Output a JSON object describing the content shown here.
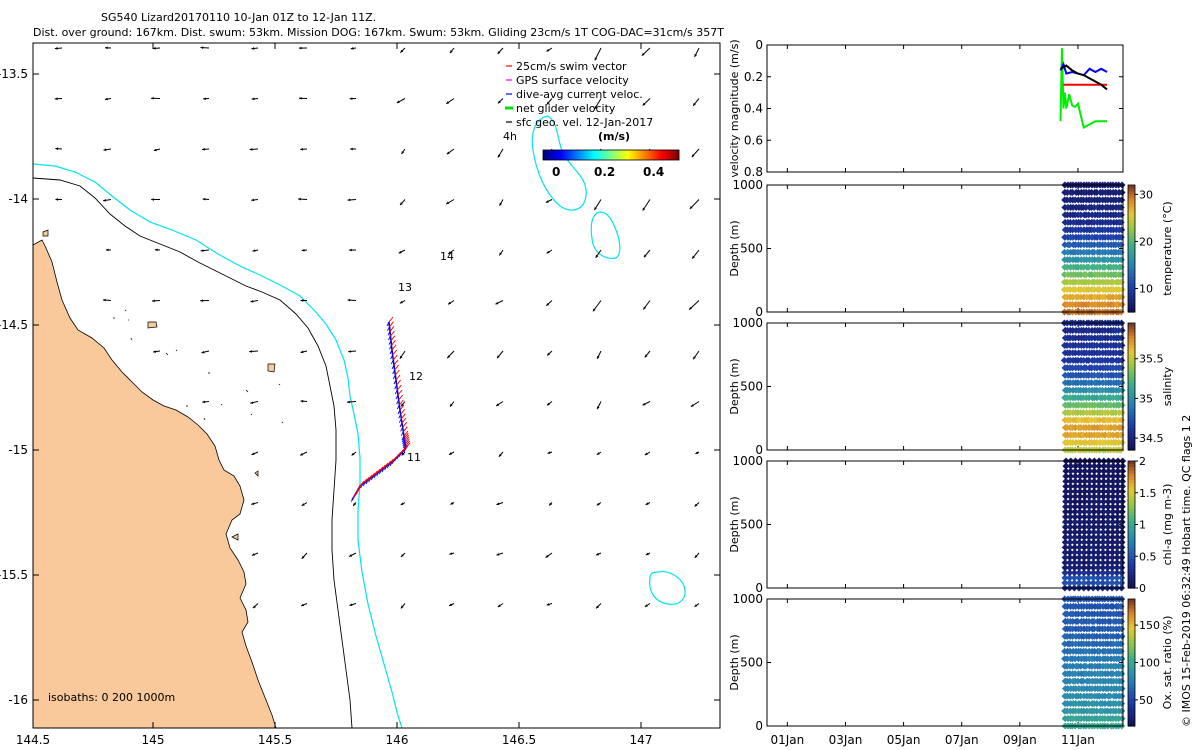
{
  "title": {
    "line1": "SG540 Lizard20170110 10-Jan 01Z to 12-Jan 11Z.",
    "line2": "Dist. over ground: 167km. Dist. swum: 53km. Mission DOG: 167km. Swum: 53km. Gliding 23cm/s 1T COG-DAC=31cm/s 357T"
  },
  "map": {
    "x_ticks": [
      "144.5",
      "145",
      "145.5",
      "146",
      "146.5",
      "147"
    ],
    "y_ticks": [
      "-13.5",
      "-14",
      "-14.5",
      "-15",
      "-15.5",
      "-16"
    ],
    "legend": [
      {
        "label": "25cm/s swim vector",
        "color": "#ff0000"
      },
      {
        "label": "GPS surface velocity",
        "color": "#ff00ff"
      },
      {
        "label": "dive-avg current veloc.",
        "color": "#0000ff"
      },
      {
        "label": "net glider velocity",
        "color": "#00dd00"
      },
      {
        "label": "sfc geo. vel. 12-Jan-2017",
        "color": "#000000"
      }
    ],
    "colorbar": {
      "label": "(m/s)",
      "ticks": [
        "0",
        "0.2",
        "0.4"
      ],
      "range": [
        0,
        0.5
      ]
    },
    "annotations": [
      "4h",
      "14",
      "13",
      "12",
      "11"
    ],
    "isobaths_label": "isobaths: 0   200  1000m",
    "land_color": "#f9c89b",
    "isobath_200_color": "#000000",
    "isobath_1000_color": "#00e5ee"
  },
  "chart_data": [
    {
      "type": "line",
      "ylabel": "velocity magnitude (m/s)",
      "ylim": [
        0,
        0.8
      ],
      "yticks": [
        "0.8",
        "0.6",
        "0.4",
        "0.2",
        "0"
      ],
      "series": [
        {
          "color": "#00ee00",
          "x": [
            "10.4",
            "10.45",
            "10.5",
            "10.55",
            "10.6",
            "10.7",
            "10.8",
            "10.9",
            "11.0",
            "11.2",
            "11.4",
            "11.6",
            "11.8",
            "12.0"
          ],
          "values": [
            0.48,
            0.02,
            0.4,
            0.3,
            0.4,
            0.31,
            0.38,
            0.39,
            0.37,
            0.52,
            0.5,
            0.48,
            0.48,
            0.48
          ]
        },
        {
          "color": "#ff0000",
          "x": [
            "10.5",
            "12.0"
          ],
          "values": [
            0.25,
            0.25
          ]
        },
        {
          "color": "#0000ff",
          "x": [
            "10.4",
            "10.5",
            "10.6",
            "10.8",
            "11.0",
            "11.2",
            "11.4",
            "11.6",
            "11.8",
            "12.0"
          ],
          "values": [
            0.16,
            0.12,
            0.18,
            0.17,
            0.18,
            0.19,
            0.15,
            0.17,
            0.15,
            0.17
          ]
        },
        {
          "color": "#000000",
          "x": [
            "10.4",
            "10.6",
            "10.8",
            "11.0",
            "11.2",
            "11.4",
            "11.6",
            "11.8",
            "12.0"
          ],
          "values": [
            0.15,
            0.13,
            0.16,
            0.18,
            0.19,
            0.21,
            0.23,
            0.25,
            0.28
          ]
        }
      ]
    },
    {
      "type": "scatter",
      "ylabel": "Depth (m)",
      "ylim": [
        1000,
        0
      ],
      "yticks": [
        "0",
        "500",
        "1000"
      ],
      "colorbar_label": "temperature (°C)",
      "cbar_ticks": [
        "30",
        "20",
        "10"
      ],
      "cbar_range": [
        5,
        32
      ],
      "profile": [
        [
          0,
          30
        ],
        [
          100,
          28
        ],
        [
          200,
          25
        ],
        [
          300,
          21
        ],
        [
          400,
          17
        ],
        [
          500,
          13
        ],
        [
          600,
          10
        ],
        [
          700,
          8
        ],
        [
          1000,
          6
        ]
      ]
    },
    {
      "type": "scatter",
      "ylabel": "Depth (m)",
      "ylim": [
        1000,
        0
      ],
      "yticks": [
        "0",
        "500",
        "1000"
      ],
      "colorbar_label": "salinity",
      "cbar_ticks": [
        "35.5",
        "35",
        "34.5"
      ],
      "cbar_range": [
        34.35,
        35.95
      ],
      "profile": [
        [
          0,
          35.5
        ],
        [
          150,
          35.75
        ],
        [
          250,
          35.6
        ],
        [
          350,
          35.3
        ],
        [
          450,
          35.05
        ],
        [
          550,
          34.8
        ],
        [
          700,
          34.6
        ],
        [
          1000,
          34.5
        ]
      ]
    },
    {
      "type": "scatter",
      "ylabel": "Depth (m)",
      "ylim": [
        1000,
        0
      ],
      "yticks": [
        "0",
        "500",
        "1000"
      ],
      "colorbar_label": "chl-a (mg m-3)",
      "cbar_ticks": [
        "2",
        "1.5",
        "1",
        "0.5",
        "0"
      ],
      "cbar_range": [
        0,
        2
      ],
      "profile": [
        [
          0,
          0.15
        ],
        [
          60,
          0.6
        ],
        [
          100,
          0.35
        ],
        [
          150,
          0.1
        ],
        [
          1000,
          0
        ]
      ]
    },
    {
      "type": "scatter",
      "ylabel": "Depth (m)",
      "ylim": [
        1000,
        0
      ],
      "yticks": [
        "0",
        "500",
        "1000"
      ],
      "colorbar_label": "Ox. sat. ratio (%)",
      "cbar_ticks": [
        "150",
        "100",
        "50"
      ],
      "cbar_range": [
        15,
        185
      ],
      "profile": [
        [
          0,
          100
        ],
        [
          60,
          95
        ],
        [
          150,
          85
        ],
        [
          300,
          80
        ],
        [
          500,
          75
        ],
        [
          700,
          62
        ],
        [
          1000,
          55
        ]
      ]
    }
  ],
  "time_axis": {
    "ticks": [
      "01Jan",
      "03Jan",
      "05Jan",
      "07Jan",
      "09Jan",
      "11Jan"
    ],
    "range_days": [
      0.3,
      12.55
    ]
  },
  "side_note": "© IMOS 15-Feb-2019 06:32:49 Hobart time. QC flags 1  2"
}
